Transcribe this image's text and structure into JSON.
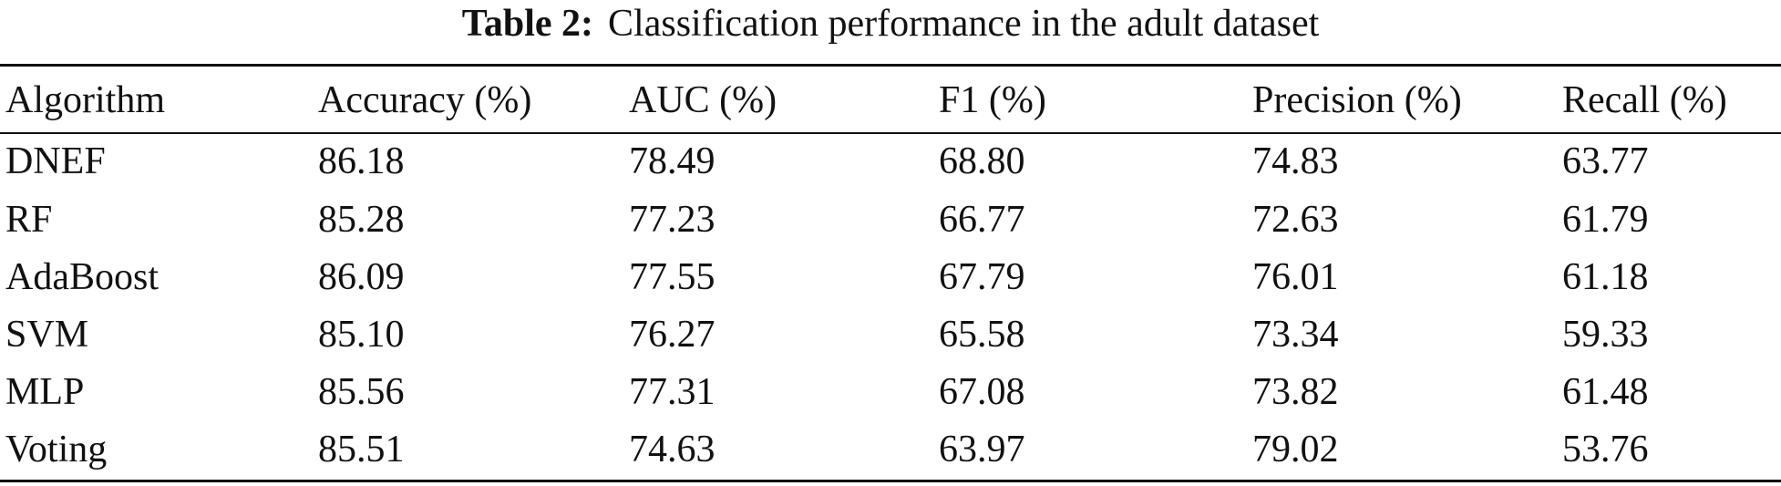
{
  "caption": {
    "label": "Table 2:",
    "text": "Classification performance in the adult dataset"
  },
  "table": {
    "headers": [
      "Algorithm",
      "Accuracy (%)",
      "AUC (%)",
      "F1 (%)",
      "Precision (%)",
      "Recall (%)"
    ],
    "rows": [
      [
        "DNEF",
        "86.18",
        "78.49",
        "68.80",
        "74.83",
        "63.77"
      ],
      [
        "RF",
        "85.28",
        "77.23",
        "66.77",
        "72.63",
        "61.79"
      ],
      [
        "AdaBoost",
        "86.09",
        "77.55",
        "67.79",
        "76.01",
        "61.18"
      ],
      [
        "SVM",
        "85.10",
        "76.27",
        "65.58",
        "73.34",
        "59.33"
      ],
      [
        "MLP",
        "85.56",
        "77.31",
        "67.08",
        "73.82",
        "61.48"
      ],
      [
        "Voting",
        "85.51",
        "74.63",
        "63.97",
        "79.02",
        "53.76"
      ]
    ]
  }
}
